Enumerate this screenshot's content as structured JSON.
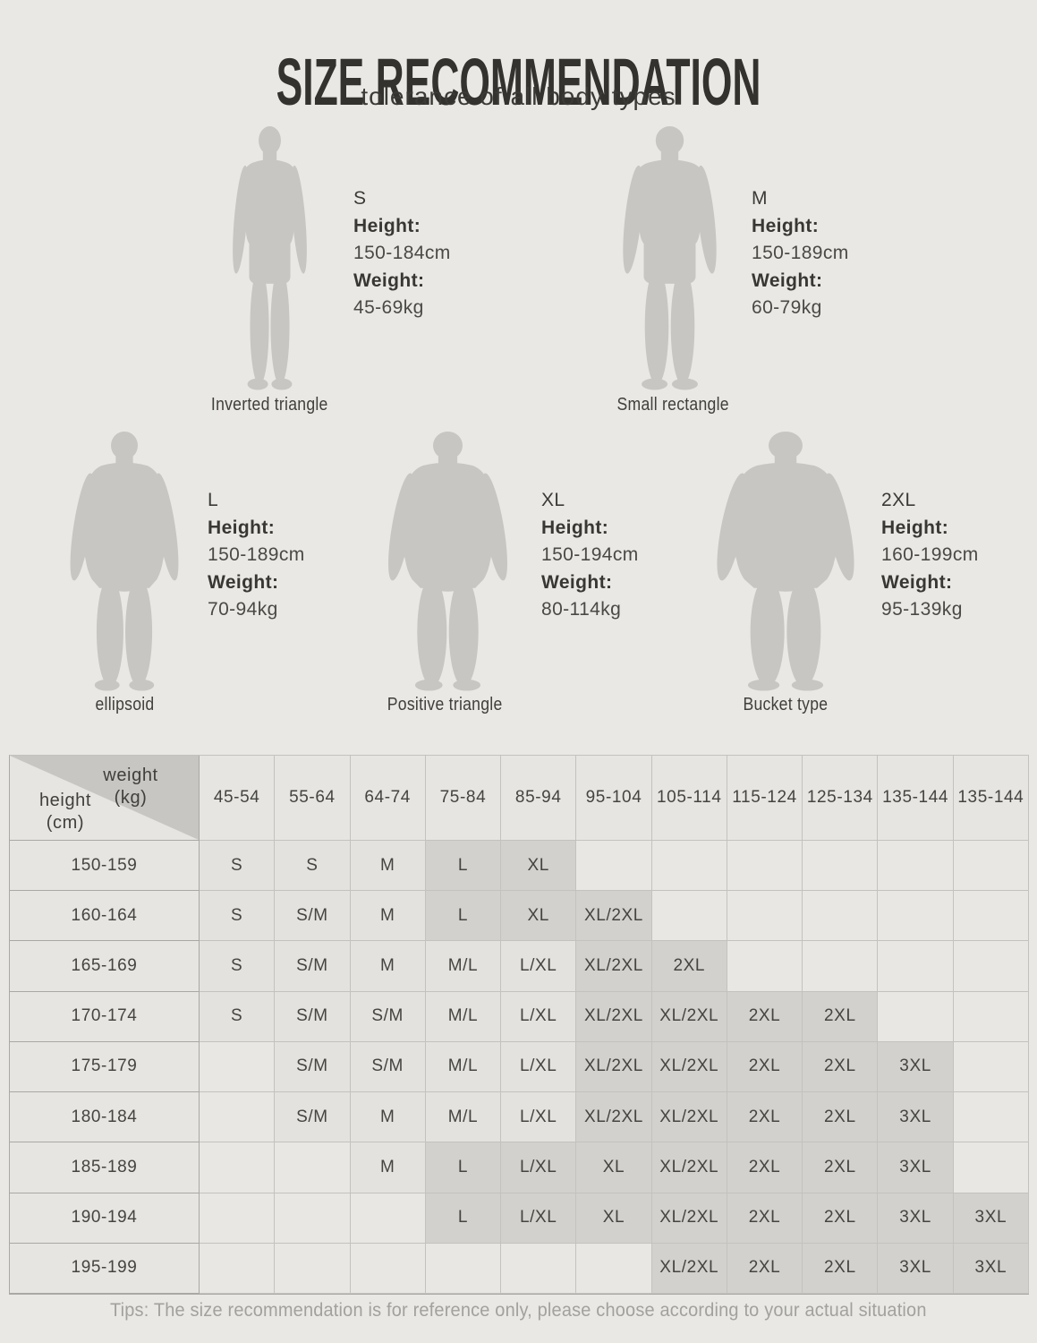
{
  "page": {
    "title": "SIZE RECOMMENDATION",
    "subtitle": "tolerance of all body types",
    "tips": "Tips: The size recommendation is for reference only, please choose according to your actual situation",
    "colors": {
      "background": "#e9e8e4",
      "silhouette": "#c7c6c2",
      "cell_dark": "#d2d1cd",
      "cell_light": "#e3e2de",
      "corner_triangle": "#c7c6c2"
    }
  },
  "figures": [
    {
      "size": "S",
      "height_label": "Height:",
      "height_value": "150-184cm",
      "weight_label": "Weight:",
      "weight_value": "45-69kg",
      "body_type": "Inverted triangle",
      "build": "slim"
    },
    {
      "size": "M",
      "height_label": "Height:",
      "height_value": "150-189cm",
      "weight_label": "Weight:",
      "weight_value": "60-79kg",
      "body_type": "Small rectangle",
      "build": "slim"
    },
    {
      "size": "L",
      "height_label": "Height:",
      "height_value": "150-189cm",
      "weight_label": "Weight:",
      "weight_value": "70-94kg",
      "body_type": "ellipsoid",
      "build": "heavy"
    },
    {
      "size": "XL",
      "height_label": "Height:",
      "height_value": "150-194cm",
      "weight_label": "Weight:",
      "weight_value": "80-114kg",
      "body_type": "Positive triangle",
      "build": "heavy"
    },
    {
      "size": "2XL",
      "height_label": "Height:",
      "height_value": "160-199cm",
      "weight_label": "Weight:",
      "weight_value": "95-139kg",
      "body_type": "Bucket type",
      "build": "heavy"
    }
  ],
  "chart_data": {
    "type": "table",
    "corner": {
      "col_axis": "weight",
      "col_unit": "(kg)",
      "row_axis": "height",
      "row_unit": "(cm)"
    },
    "weight_columns": [
      "45-54",
      "55-64",
      "64-74",
      "75-84",
      "85-94",
      "95-104",
      "105-114",
      "115-124",
      "125-134",
      "135-144",
      "135-144"
    ],
    "rows": [
      {
        "height": "150-159",
        "cells": [
          "S",
          "S",
          "M",
          "L",
          "XL",
          "",
          "",
          "",
          "",
          "",
          ""
        ],
        "shades": [
          "l",
          "l",
          "l",
          "d",
          "d",
          "",
          "",
          "",
          "",
          "",
          ""
        ]
      },
      {
        "height": "160-164",
        "cells": [
          "S",
          "S/M",
          "M",
          "L",
          "XL",
          "XL/2XL",
          "",
          "",
          "",
          "",
          ""
        ],
        "shades": [
          "l",
          "l",
          "l",
          "d",
          "d",
          "d",
          "",
          "",
          "",
          "",
          ""
        ]
      },
      {
        "height": "165-169",
        "cells": [
          "S",
          "S/M",
          "M",
          "M/L",
          "L/XL",
          "XL/2XL",
          "2XL",
          "",
          "",
          "",
          ""
        ],
        "shades": [
          "l",
          "l",
          "l",
          "l",
          "l",
          "d",
          "d",
          "",
          "",
          "",
          ""
        ]
      },
      {
        "height": "170-174",
        "cells": [
          "S",
          "S/M",
          "S/M",
          "M/L",
          "L/XL",
          "XL/2XL",
          "XL/2XL",
          "2XL",
          "2XL",
          "",
          ""
        ],
        "shades": [
          "l",
          "l",
          "l",
          "l",
          "l",
          "d",
          "d",
          "d",
          "d",
          "",
          ""
        ]
      },
      {
        "height": "175-179",
        "cells": [
          "",
          "S/M",
          "S/M",
          "M/L",
          "L/XL",
          "XL/2XL",
          "XL/2XL",
          "2XL",
          "2XL",
          "3XL",
          ""
        ],
        "shades": [
          "",
          "l",
          "l",
          "l",
          "l",
          "d",
          "d",
          "d",
          "d",
          "d",
          ""
        ]
      },
      {
        "height": "180-184",
        "cells": [
          "",
          "S/M",
          "M",
          "M/L",
          "L/XL",
          "XL/2XL",
          "XL/2XL",
          "2XL",
          "2XL",
          "3XL",
          ""
        ],
        "shades": [
          "",
          "l",
          "l",
          "l",
          "l",
          "d",
          "d",
          "d",
          "d",
          "d",
          ""
        ]
      },
      {
        "height": "185-189",
        "cells": [
          "",
          "",
          "M",
          "L",
          "L/XL",
          "XL",
          "XL/2XL",
          "2XL",
          "2XL",
          "3XL",
          ""
        ],
        "shades": [
          "",
          "",
          "l",
          "d",
          "d",
          "d",
          "d",
          "d",
          "d",
          "d",
          ""
        ]
      },
      {
        "height": "190-194",
        "cells": [
          "",
          "",
          "",
          "L",
          "L/XL",
          "XL",
          "XL/2XL",
          "2XL",
          "2XL",
          "3XL",
          "3XL"
        ],
        "shades": [
          "",
          "",
          "",
          "d",
          "d",
          "d",
          "d",
          "d",
          "d",
          "d",
          "d"
        ]
      },
      {
        "height": "195-199",
        "cells": [
          "",
          "",
          "",
          "",
          "",
          "",
          "XL/2XL",
          "2XL",
          "2XL",
          "3XL",
          "3XL"
        ],
        "shades": [
          "",
          "",
          "",
          "",
          "",
          "",
          "d",
          "d",
          "d",
          "d",
          "d"
        ]
      }
    ]
  }
}
